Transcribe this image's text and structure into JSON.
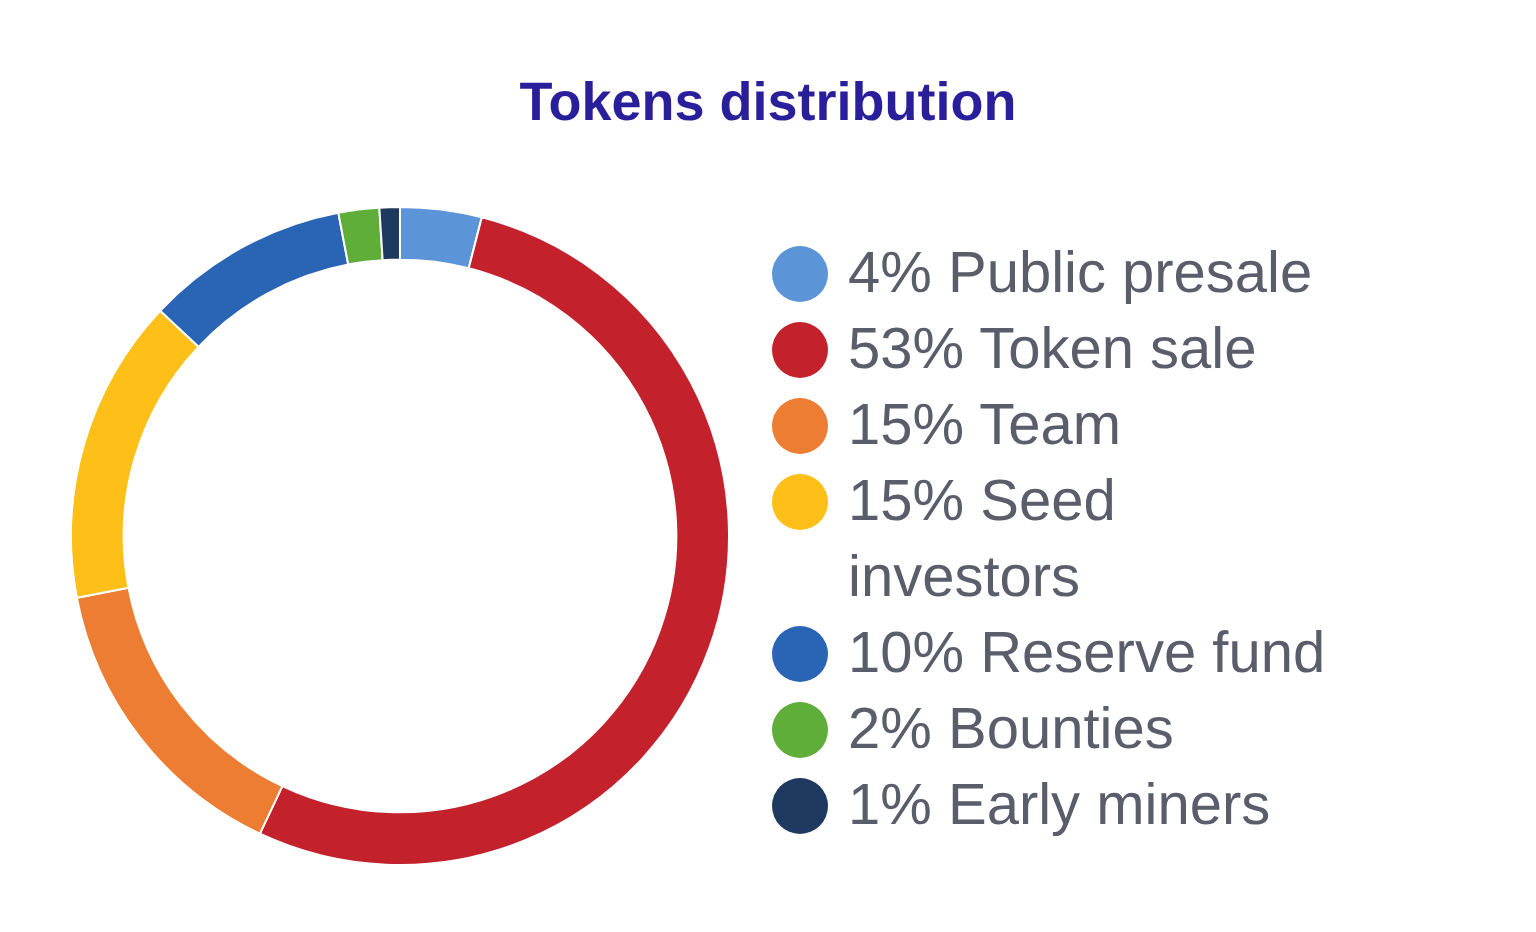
{
  "chart_data": {
    "type": "donut",
    "title": "Tokens distribution",
    "legend": "right",
    "categories": [
      "4% Public presale",
      "53% Token sale",
      "15% Team",
      "15% Seed investors",
      "10% Reserve fund",
      "2% Bounties",
      "1% Early miners"
    ],
    "values": [
      4,
      53,
      15,
      15,
      10,
      2,
      1
    ],
    "colors": [
      "#5b95d8",
      "#c3212b",
      "#ec7d32",
      "#fdbf18",
      "#2a64b4",
      "#5fae3a",
      "#1f3a60"
    ]
  }
}
